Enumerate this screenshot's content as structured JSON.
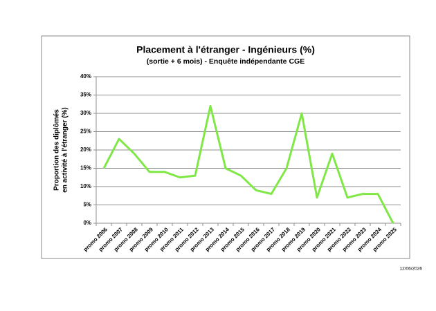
{
  "chart_data": {
    "type": "line",
    "title": "Placement  à l'étranger - Ingénieurs (%)",
    "subtitle": "(sortie + 6 mois) - Enquête indépendante CGE",
    "ylabel": [
      "Proportion des diplômés",
      "en activité à l'étranger (%)"
    ],
    "date": "12/06/2026",
    "categories": [
      "promo 2006",
      "promo 2007",
      "promo 2008",
      "promo 2009",
      "promo 2010",
      "promo 2011",
      "promo 2012",
      "promo 2013",
      "promo 2014",
      "promo 2015",
      "promo 2016",
      "promo 2017",
      "promo 2018",
      "promo 2019",
      "promo 2020",
      "promo 2021",
      "promo 2022",
      "promo 2023",
      "promo 2024",
      "promo 2025"
    ],
    "series": [
      {
        "name": "Placement à l'étranger",
        "color": "#80e846",
        "values": [
          15,
          23,
          19,
          14,
          14,
          12.5,
          13,
          32,
          15,
          13,
          9,
          8,
          15,
          30,
          7,
          19,
          7,
          8,
          8,
          0
        ]
      }
    ],
    "ylim": [
      0,
      40
    ],
    "yticks": [
      {
        "value": 0,
        "label": "0%"
      },
      {
        "value": 5,
        "label": "5%"
      },
      {
        "value": 10,
        "label": "10%"
      },
      {
        "value": 15,
        "label": "15%"
      },
      {
        "value": 20,
        "label": "20%"
      },
      {
        "value": 25,
        "label": "25%"
      },
      {
        "value": 30,
        "label": "30%"
      },
      {
        "value": 35,
        "label": "35%"
      },
      {
        "value": 40,
        "label": "40%"
      }
    ],
    "grid": true
  }
}
